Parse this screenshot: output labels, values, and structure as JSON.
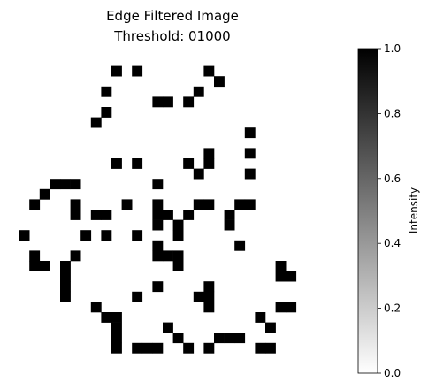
{
  "chart_data": {
    "type": "heatmap",
    "title": "Edge Filtered Image",
    "subtitle": "Threshold: 01000",
    "grid": false,
    "rows": 30,
    "cols": 28,
    "values": [
      [
        0,
        0,
        0,
        0,
        0,
        0,
        0,
        0,
        0,
        0,
        0,
        0,
        0,
        0,
        0,
        0,
        0,
        0,
        0,
        0,
        0,
        0,
        0,
        0,
        0,
        0,
        0,
        0
      ],
      [
        0,
        0,
        0,
        0,
        0,
        0,
        0,
        0,
        0,
        0,
        1,
        0,
        1,
        0,
        0,
        0,
        0,
        0,
        0,
        1,
        0,
        0,
        0,
        0,
        0,
        0,
        0,
        0
      ],
      [
        0,
        0,
        0,
        0,
        0,
        0,
        0,
        0,
        0,
        0,
        0,
        0,
        0,
        0,
        0,
        0,
        0,
        0,
        0,
        0,
        1,
        0,
        0,
        0,
        0,
        0,
        0,
        0
      ],
      [
        0,
        0,
        0,
        0,
        0,
        0,
        0,
        0,
        0,
        1,
        0,
        0,
        0,
        0,
        0,
        0,
        0,
        0,
        1,
        0,
        0,
        0,
        0,
        0,
        0,
        0,
        0,
        0
      ],
      [
        0,
        0,
        0,
        0,
        0,
        0,
        0,
        0,
        0,
        0,
        0,
        0,
        0,
        0,
        1,
        1,
        0,
        1,
        0,
        0,
        0,
        0,
        0,
        0,
        0,
        0,
        0,
        0
      ],
      [
        0,
        0,
        0,
        0,
        0,
        0,
        0,
        0,
        0,
        1,
        0,
        0,
        0,
        0,
        0,
        0,
        0,
        0,
        0,
        0,
        0,
        0,
        0,
        0,
        0,
        0,
        0,
        0
      ],
      [
        0,
        0,
        0,
        0,
        0,
        0,
        0,
        0,
        1,
        0,
        0,
        0,
        0,
        0,
        0,
        0,
        0,
        0,
        0,
        0,
        0,
        0,
        0,
        0,
        0,
        0,
        0,
        0
      ],
      [
        0,
        0,
        0,
        0,
        0,
        0,
        0,
        0,
        0,
        0,
        0,
        0,
        0,
        0,
        0,
        0,
        0,
        0,
        0,
        0,
        0,
        0,
        0,
        1,
        0,
        0,
        0,
        0
      ],
      [
        0,
        0,
        0,
        0,
        0,
        0,
        0,
        0,
        0,
        0,
        0,
        0,
        0,
        0,
        0,
        0,
        0,
        0,
        0,
        0,
        0,
        0,
        0,
        0,
        0,
        0,
        0,
        0
      ],
      [
        0,
        0,
        0,
        0,
        0,
        0,
        0,
        0,
        0,
        0,
        0,
        0,
        0,
        0,
        0,
        0,
        0,
        0,
        0,
        1,
        0,
        0,
        0,
        1,
        0,
        0,
        0,
        0
      ],
      [
        0,
        0,
        0,
        0,
        0,
        0,
        0,
        0,
        0,
        0,
        1,
        0,
        1,
        0,
        0,
        0,
        0,
        1,
        0,
        1,
        0,
        0,
        0,
        0,
        0,
        0,
        0,
        0
      ],
      [
        0,
        0,
        0,
        0,
        0,
        0,
        0,
        0,
        0,
        0,
        0,
        0,
        0,
        0,
        0,
        0,
        0,
        0,
        1,
        0,
        0,
        0,
        0,
        1,
        0,
        0,
        0,
        0
      ],
      [
        0,
        0,
        0,
        0,
        1,
        1,
        1,
        0,
        0,
        0,
        0,
        0,
        0,
        0,
        1,
        0,
        0,
        0,
        0,
        0,
        0,
        0,
        0,
        0,
        0,
        0,
        0,
        0
      ],
      [
        0,
        0,
        0,
        1,
        0,
        0,
        0,
        0,
        0,
        0,
        0,
        0,
        0,
        0,
        0,
        0,
        0,
        0,
        0,
        0,
        0,
        0,
        0,
        0,
        0,
        0,
        0,
        0
      ],
      [
        0,
        0,
        1,
        0,
        0,
        0,
        1,
        0,
        0,
        0,
        0,
        1,
        0,
        0,
        1,
        0,
        0,
        0,
        1,
        1,
        0,
        0,
        1,
        1,
        0,
        0,
        0,
        0
      ],
      [
        0,
        0,
        0,
        0,
        0,
        0,
        1,
        0,
        1,
        1,
        0,
        0,
        0,
        0,
        1,
        1,
        0,
        1,
        0,
        0,
        0,
        1,
        0,
        0,
        0,
        0,
        0,
        0
      ],
      [
        0,
        0,
        0,
        0,
        0,
        0,
        0,
        0,
        0,
        0,
        0,
        0,
        0,
        0,
        1,
        0,
        1,
        0,
        0,
        0,
        0,
        1,
        0,
        0,
        0,
        0,
        0,
        0
      ],
      [
        0,
        1,
        0,
        0,
        0,
        0,
        0,
        1,
        0,
        1,
        0,
        0,
        1,
        0,
        0,
        0,
        1,
        0,
        0,
        0,
        0,
        0,
        0,
        0,
        0,
        0,
        0,
        0
      ],
      [
        0,
        0,
        0,
        0,
        0,
        0,
        0,
        0,
        0,
        0,
        0,
        0,
        0,
        0,
        1,
        0,
        0,
        0,
        0,
        0,
        0,
        0,
        1,
        0,
        0,
        0,
        0,
        0
      ],
      [
        0,
        0,
        1,
        0,
        0,
        0,
        1,
        0,
        0,
        0,
        0,
        0,
        0,
        0,
        1,
        1,
        1,
        0,
        0,
        0,
        0,
        0,
        0,
        0,
        0,
        0,
        0,
        0
      ],
      [
        0,
        0,
        1,
        1,
        0,
        1,
        0,
        0,
        0,
        0,
        0,
        0,
        0,
        0,
        0,
        0,
        1,
        0,
        0,
        0,
        0,
        0,
        0,
        0,
        0,
        0,
        1,
        0
      ],
      [
        0,
        0,
        0,
        0,
        0,
        1,
        0,
        0,
        0,
        0,
        0,
        0,
        0,
        0,
        0,
        0,
        0,
        0,
        0,
        0,
        0,
        0,
        0,
        0,
        0,
        0,
        1,
        1
      ],
      [
        0,
        0,
        0,
        0,
        0,
        1,
        0,
        0,
        0,
        0,
        0,
        0,
        0,
        0,
        1,
        0,
        0,
        0,
        0,
        1,
        0,
        0,
        0,
        0,
        0,
        0,
        0,
        0
      ],
      [
        0,
        0,
        0,
        0,
        0,
        1,
        0,
        0,
        0,
        0,
        0,
        0,
        1,
        0,
        0,
        0,
        0,
        0,
        1,
        1,
        0,
        0,
        0,
        0,
        0,
        0,
        0,
        0
      ],
      [
        0,
        0,
        0,
        0,
        0,
        0,
        0,
        0,
        1,
        0,
        0,
        0,
        0,
        0,
        0,
        0,
        0,
        0,
        0,
        1,
        0,
        0,
        0,
        0,
        0,
        0,
        1,
        1
      ],
      [
        0,
        0,
        0,
        0,
        0,
        0,
        0,
        0,
        0,
        1,
        1,
        0,
        0,
        0,
        0,
        0,
        0,
        0,
        0,
        0,
        0,
        0,
        0,
        0,
        1,
        0,
        0,
        0
      ],
      [
        0,
        0,
        0,
        0,
        0,
        0,
        0,
        0,
        0,
        0,
        1,
        0,
        0,
        0,
        0,
        1,
        0,
        0,
        0,
        0,
        0,
        0,
        0,
        0,
        0,
        1,
        0,
        0
      ],
      [
        0,
        0,
        0,
        0,
        0,
        0,
        0,
        0,
        0,
        0,
        1,
        0,
        0,
        0,
        0,
        0,
        1,
        0,
        0,
        0,
        1,
        1,
        1,
        0,
        0,
        0,
        0,
        0
      ],
      [
        0,
        0,
        0,
        0,
        0,
        0,
        0,
        0,
        0,
        0,
        1,
        0,
        1,
        1,
        1,
        0,
        0,
        1,
        0,
        1,
        0,
        0,
        0,
        0,
        1,
        1,
        0,
        0
      ],
      [
        0,
        0,
        0,
        0,
        0,
        0,
        0,
        0,
        0,
        0,
        0,
        0,
        0,
        0,
        0,
        0,
        0,
        0,
        0,
        0,
        0,
        0,
        0,
        0,
        0,
        0,
        0,
        0
      ]
    ],
    "colormap": "Greys",
    "colors": {
      "low": "#ffffff",
      "high": "#000000"
    },
    "colorbar": {
      "label": "Intensity",
      "range": [
        0.0,
        1.0
      ],
      "ticks": [
        "0.0",
        "0.2",
        "0.4",
        "0.6",
        "0.8",
        "1.0"
      ],
      "tick_values": [
        0.0,
        0.2,
        0.4,
        0.6,
        0.8,
        1.0
      ]
    }
  }
}
